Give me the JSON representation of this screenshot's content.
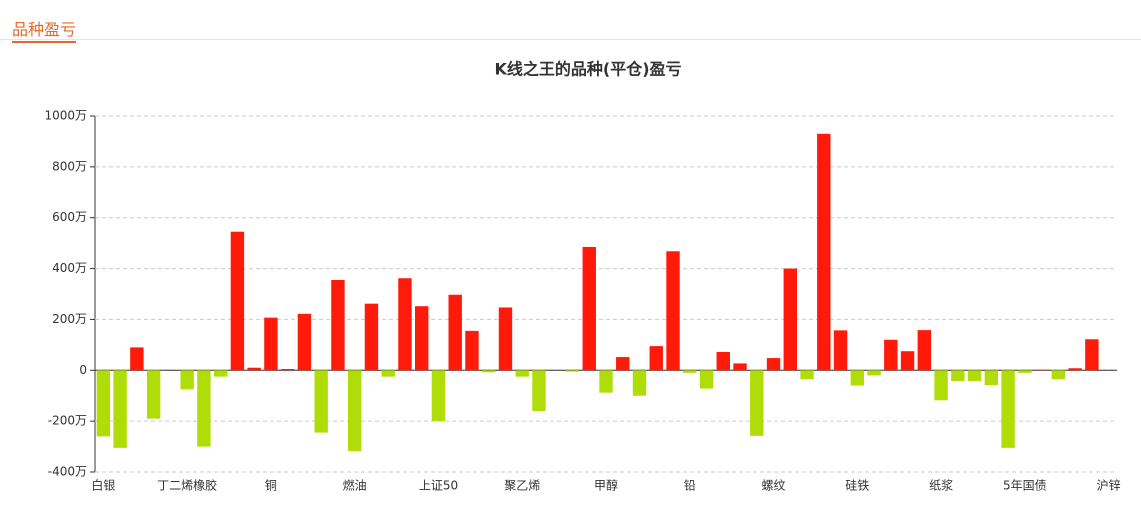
{
  "header": {
    "title": "品种盈亏"
  },
  "chart_data": {
    "type": "bar",
    "title": "K线之王的品种(平仓)盈亏",
    "categories": [
      "白银",
      null,
      null,
      null,
      null,
      "丁二烯橡胶",
      null,
      null,
      null,
      null,
      "铜",
      null,
      null,
      null,
      null,
      "燃油",
      null,
      null,
      null,
      null,
      "上证50",
      null,
      null,
      null,
      null,
      "聚乙烯",
      null,
      null,
      null,
      null,
      "甲醇",
      null,
      null,
      null,
      null,
      "铅",
      null,
      null,
      null,
      null,
      "螺纹",
      null,
      null,
      null,
      null,
      "硅铁",
      null,
      null,
      null,
      null,
      "纸浆",
      null,
      null,
      null,
      null,
      "5年国债",
      null,
      null,
      null,
      null,
      "沪锌"
    ],
    "values": [
      -260,
      -305,
      90,
      -190,
      0,
      -75,
      -300,
      -25,
      545,
      10,
      207,
      5,
      222,
      -245,
      355,
      -318,
      262,
      -25,
      362,
      252,
      -200,
      297,
      155,
      -8,
      247,
      -25,
      -160,
      0,
      -5,
      485,
      -88,
      52,
      -100,
      95,
      468,
      -10,
      -72,
      72,
      27,
      -258,
      48,
      400,
      -35,
      930,
      157,
      -60,
      -20,
      120,
      75,
      158,
      -118,
      -42,
      -42,
      -58,
      -305,
      -10,
      2,
      -35,
      8,
      122,
      0
    ],
    "positive_color": "#ff1a0a",
    "negative_color": "#b0dd0a",
    "ylim": [
      -400,
      1000
    ],
    "yticks": [
      {
        "value": -400,
        "label": "-400万"
      },
      {
        "value": -200,
        "label": "-200万"
      },
      {
        "value": 0,
        "label": "0"
      },
      {
        "value": 200,
        "label": "200万"
      },
      {
        "value": 400,
        "label": "400万"
      },
      {
        "value": 600,
        "label": "600万"
      },
      {
        "value": 800,
        "label": "800万"
      },
      {
        "value": 1000,
        "label": "1000万"
      }
    ],
    "grid": true
  }
}
